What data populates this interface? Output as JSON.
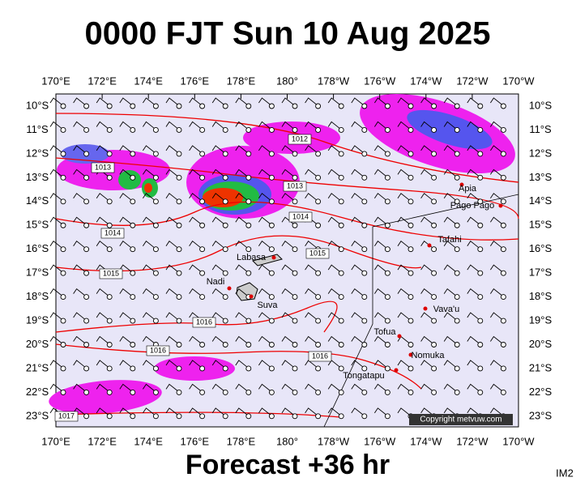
{
  "header": {
    "title": "0000 FJT Sun 10 Aug 2025"
  },
  "axes": {
    "longitudes": [
      "170°E",
      "172°E",
      "174°E",
      "176°E",
      "178°E",
      "180°",
      "178°W",
      "176°W",
      "174°W",
      "172°W",
      "170°W"
    ],
    "latitudes": [
      "10°S",
      "11°S",
      "12°S",
      "13°S",
      "14°S",
      "15°S",
      "16°S",
      "17°S",
      "18°S",
      "19°S",
      "20°S",
      "21°S",
      "22°S",
      "23°S"
    ]
  },
  "places": [
    "Apia",
    "Pago Pago",
    "Tafahi",
    "Labasa",
    "Nadi",
    "Suva",
    "Vava'u",
    "Tofua",
    "Nomuka",
    "Tongatapu"
  ],
  "isobars": [
    "1012",
    "1013",
    "1013",
    "1014",
    "1014",
    "1015",
    "1015",
    "1016",
    "1016",
    "1016",
    "1017"
  ],
  "footer": {
    "forecast": "Forecast +36 hr",
    "copyright": "Copyright metvuw.com",
    "code": "IM2"
  }
}
